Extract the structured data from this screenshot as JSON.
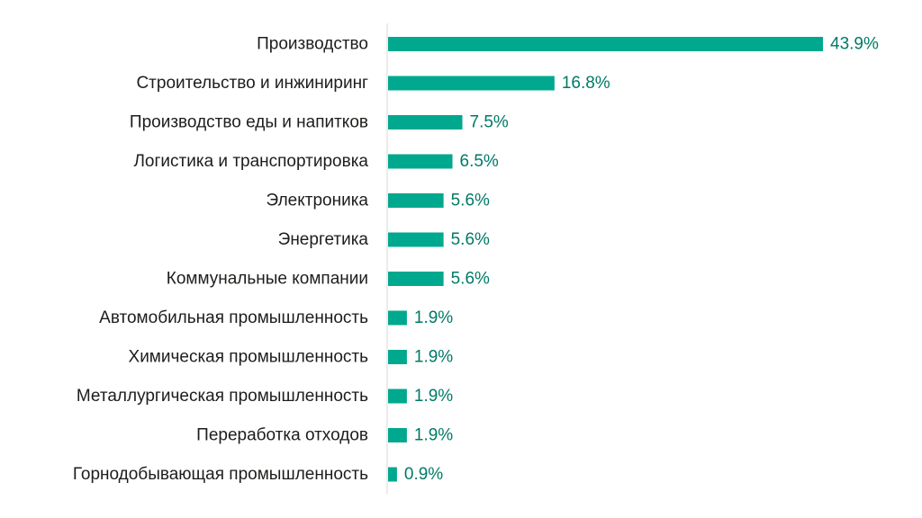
{
  "chart_data": {
    "type": "bar",
    "orientation": "horizontal",
    "categories": [
      "Производство",
      "Строительство и инжиниринг",
      "Производство еды и напитков",
      "Логистика и транспортировка",
      "Электроника",
      "Энергетика",
      "Коммунальные компании",
      "Автомобильная промышленность",
      "Химическая промышленность",
      "Металлургическая промышленность",
      "Переработка отходов",
      "Горнодобывающая промышленность"
    ],
    "values": [
      43.9,
      16.8,
      7.5,
      6.5,
      5.6,
      5.6,
      5.6,
      1.9,
      1.9,
      1.9,
      1.9,
      0.9
    ],
    "value_labels": [
      "43.9%",
      "16.8%",
      "7.5%",
      "6.5%",
      "5.6%",
      "5.6%",
      "5.6%",
      "1.9%",
      "1.9%",
      "1.9%",
      "1.9%",
      "0.9%"
    ],
    "title": "",
    "xlabel": "",
    "ylabel": "",
    "xlim": [
      0,
      43.9
    ],
    "grid": false,
    "legend": "none",
    "colors": {
      "bar": "#00a88e",
      "value_text": "#007a66",
      "axis": "#d9d9d9",
      "category_text": "#1d1d1b"
    }
  }
}
